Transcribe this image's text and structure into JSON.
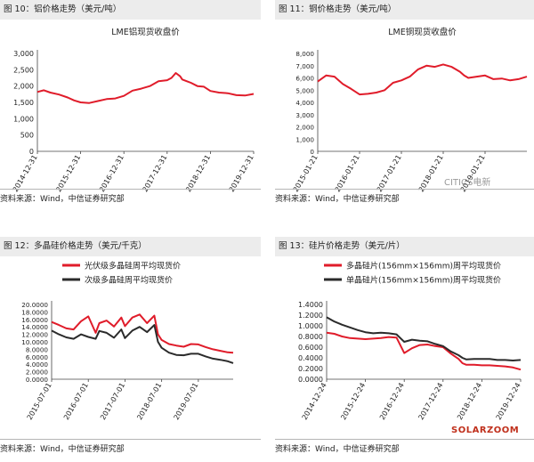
{
  "panels": [
    {
      "label": "图 10：铝价格走势（美元/吨）",
      "source": "资料来源：Wind，中信证券研究部"
    },
    {
      "label": "图 11：铜价格走势（美元/吨）",
      "source": "资料来源：Wind，中信证券研究部"
    },
    {
      "label": "图 12：多晶硅价格走势（美元/千克）",
      "source": "资料来源：Wind，中信证券研究部"
    },
    {
      "label": "图 13：硅片价格走势（美元/片）",
      "source": "资料来源：Wind，中信证券研究部"
    }
  ],
  "watermarks": {
    "citics": "CITICS电新",
    "solarzoom": "SOLARZOOM"
  },
  "colors": {
    "red": "#e01c2a",
    "black": "#2b2b2b",
    "header_bg": "#ececec"
  },
  "chart_data": [
    {
      "type": "line",
      "title": "LME铝现货收盘价",
      "xlabel": "",
      "ylabel": "",
      "x_ticks": [
        "2014-12-31",
        "2015-12-31",
        "2016-12-31",
        "2017-12-31",
        "2018-12-31",
        "2019-12-31"
      ],
      "ylim": [
        0,
        3000
      ],
      "y_ticks": [
        "0",
        "500",
        "1,000",
        "1,500",
        "2,000",
        "2,500",
        "3,000"
      ],
      "series": [
        {
          "color": "#e01c2a",
          "x": [
            0,
            0.15,
            0.3,
            0.5,
            0.7,
            0.85,
            1.0,
            1.2,
            1.4,
            1.6,
            1.8,
            2.0,
            2.2,
            2.4,
            2.6,
            2.8,
            3.0,
            3.1,
            3.2,
            3.3,
            3.35,
            3.45,
            3.55,
            3.7,
            3.85,
            4.0,
            4.2,
            4.4,
            4.6,
            4.8,
            5.0
          ],
          "values": [
            1820,
            1870,
            1800,
            1740,
            1650,
            1560,
            1500,
            1480,
            1540,
            1600,
            1620,
            1700,
            1860,
            1920,
            2000,
            2150,
            2180,
            2250,
            2400,
            2300,
            2200,
            2150,
            2100,
            2000,
            1980,
            1850,
            1800,
            1780,
            1720,
            1710,
            1760
          ]
        }
      ],
      "grid": false,
      "legend": "none"
    },
    {
      "type": "line",
      "title": "LME铜现货收盘价",
      "xlabel": "",
      "ylabel": "",
      "x_ticks": [
        "2015-01-21",
        "2016-01-21",
        "2017-01-21",
        "2018-01-21",
        "2019-01-21"
      ],
      "ylim": [
        0,
        8000
      ],
      "y_ticks": [
        "0",
        "1,000",
        "2,000",
        "3,000",
        "4,000",
        "5,000",
        "6,000",
        "7,000",
        "8,000"
      ],
      "series": [
        {
          "color": "#e01c2a",
          "x": [
            0,
            0.2,
            0.4,
            0.6,
            0.8,
            1.0,
            1.2,
            1.4,
            1.6,
            1.8,
            2.0,
            2.2,
            2.4,
            2.6,
            2.8,
            3.0,
            3.2,
            3.4,
            3.5,
            3.6,
            3.8,
            4.0,
            4.2,
            4.4,
            4.6,
            4.8,
            5.0
          ],
          "values": [
            5700,
            6200,
            6100,
            5500,
            5100,
            4650,
            4700,
            4800,
            5000,
            5600,
            5800,
            6100,
            6700,
            7000,
            6900,
            7100,
            6900,
            6500,
            6200,
            6000,
            6100,
            6200,
            5900,
            5950,
            5800,
            5900,
            6100
          ]
        }
      ],
      "grid": false,
      "legend": "none"
    },
    {
      "type": "line",
      "title": "",
      "xlabel": "",
      "ylabel": "",
      "x_ticks": [
        "2015-07-01",
        "2016-07-01",
        "2017-07-01",
        "2018-07-01",
        "2019-07-01"
      ],
      "ylim": [
        0,
        20
      ],
      "y_ticks": [
        "0.0000",
        "2.0000",
        "4.0000",
        "6.0000",
        "8.0000",
        "10.0000",
        "12.0000",
        "14.0000",
        "16.0000",
        "18.0000",
        "20.0000"
      ],
      "series": [
        {
          "name": "光伏级多晶硅周平均现货价",
          "color": "#e01c2a",
          "x": [
            0,
            0.2,
            0.4,
            0.6,
            0.8,
            1.0,
            1.2,
            1.3,
            1.5,
            1.7,
            1.9,
            2.0,
            2.2,
            2.4,
            2.6,
            2.8,
            2.9,
            3.0,
            3.2,
            3.4,
            3.6,
            3.8,
            4.0,
            4.2,
            4.4,
            4.6,
            4.8,
            4.95
          ],
          "values": [
            15.3,
            14.5,
            13.6,
            13.3,
            15.5,
            16.8,
            12.4,
            15.0,
            15.7,
            14.1,
            16.5,
            14.2,
            16.5,
            17.3,
            15.0,
            17.0,
            12.0,
            10.5,
            9.4,
            9.0,
            8.7,
            9.4,
            9.3,
            8.6,
            8.0,
            7.6,
            7.2,
            7.1
          ]
        },
        {
          "name": "次级多晶硅周平均现货价",
          "color": "#2b2b2b",
          "x": [
            0,
            0.2,
            0.4,
            0.6,
            0.8,
            1.0,
            1.2,
            1.3,
            1.5,
            1.7,
            1.9,
            2.0,
            2.2,
            2.4,
            2.6,
            2.8,
            2.9,
            3.0,
            3.2,
            3.4,
            3.6,
            3.8,
            4.0,
            4.2,
            4.4,
            4.6,
            4.8,
            4.95
          ],
          "values": [
            13.0,
            12.0,
            11.2,
            10.8,
            12.0,
            11.3,
            10.8,
            12.9,
            12.4,
            11.1,
            13.3,
            11.0,
            13.0,
            14.0,
            12.6,
            14.5,
            10.0,
            8.4,
            7.1,
            6.5,
            6.4,
            6.8,
            6.8,
            6.1,
            5.5,
            5.2,
            4.8,
            4.3
          ]
        }
      ],
      "grid": false,
      "legend": "top-left"
    },
    {
      "type": "line",
      "title": "",
      "xlabel": "",
      "ylabel": "",
      "x_ticks": [
        "2014-12-24",
        "2015-12-24",
        "2016-12-24",
        "2017-12-24",
        "2018-12-24",
        "2019-12-24"
      ],
      "ylim": [
        0,
        1.4
      ],
      "y_ticks": [
        "0.0000",
        "0.2000",
        "0.4000",
        "0.6000",
        "0.8000",
        "1.0000",
        "1.2000",
        "1.4000"
      ],
      "series": [
        {
          "name": "多晶硅片(156mm×156mm)周平均现货价",
          "color": "#e01c2a",
          "x": [
            0,
            0.2,
            0.4,
            0.6,
            0.8,
            1.0,
            1.2,
            1.4,
            1.6,
            1.8,
            2.0,
            2.2,
            2.4,
            2.6,
            2.8,
            3.0,
            3.2,
            3.4,
            3.5,
            3.6,
            3.8,
            4.0,
            4.2,
            4.4,
            4.6,
            4.8,
            5.0
          ],
          "values": [
            0.87,
            0.85,
            0.8,
            0.77,
            0.76,
            0.75,
            0.76,
            0.77,
            0.79,
            0.78,
            0.49,
            0.58,
            0.64,
            0.65,
            0.62,
            0.6,
            0.48,
            0.38,
            0.3,
            0.27,
            0.27,
            0.26,
            0.26,
            0.25,
            0.24,
            0.22,
            0.18
          ]
        },
        {
          "name": "单晶硅片(156mm×156mm)周平均现货价",
          "color": "#2b2b2b",
          "x": [
            0,
            0.2,
            0.4,
            0.6,
            0.8,
            1.0,
            1.2,
            1.4,
            1.6,
            1.8,
            2.0,
            2.2,
            2.4,
            2.6,
            2.8,
            3.0,
            3.2,
            3.4,
            3.5,
            3.6,
            3.8,
            4.0,
            4.2,
            4.4,
            4.6,
            4.8,
            5.0
          ],
          "values": [
            1.16,
            1.08,
            1.02,
            0.97,
            0.92,
            0.88,
            0.86,
            0.87,
            0.86,
            0.84,
            0.7,
            0.74,
            0.72,
            0.71,
            0.66,
            0.62,
            0.52,
            0.45,
            0.4,
            0.37,
            0.38,
            0.38,
            0.38,
            0.36,
            0.36,
            0.35,
            0.36
          ]
        }
      ],
      "grid": false,
      "legend": "top-center"
    }
  ]
}
